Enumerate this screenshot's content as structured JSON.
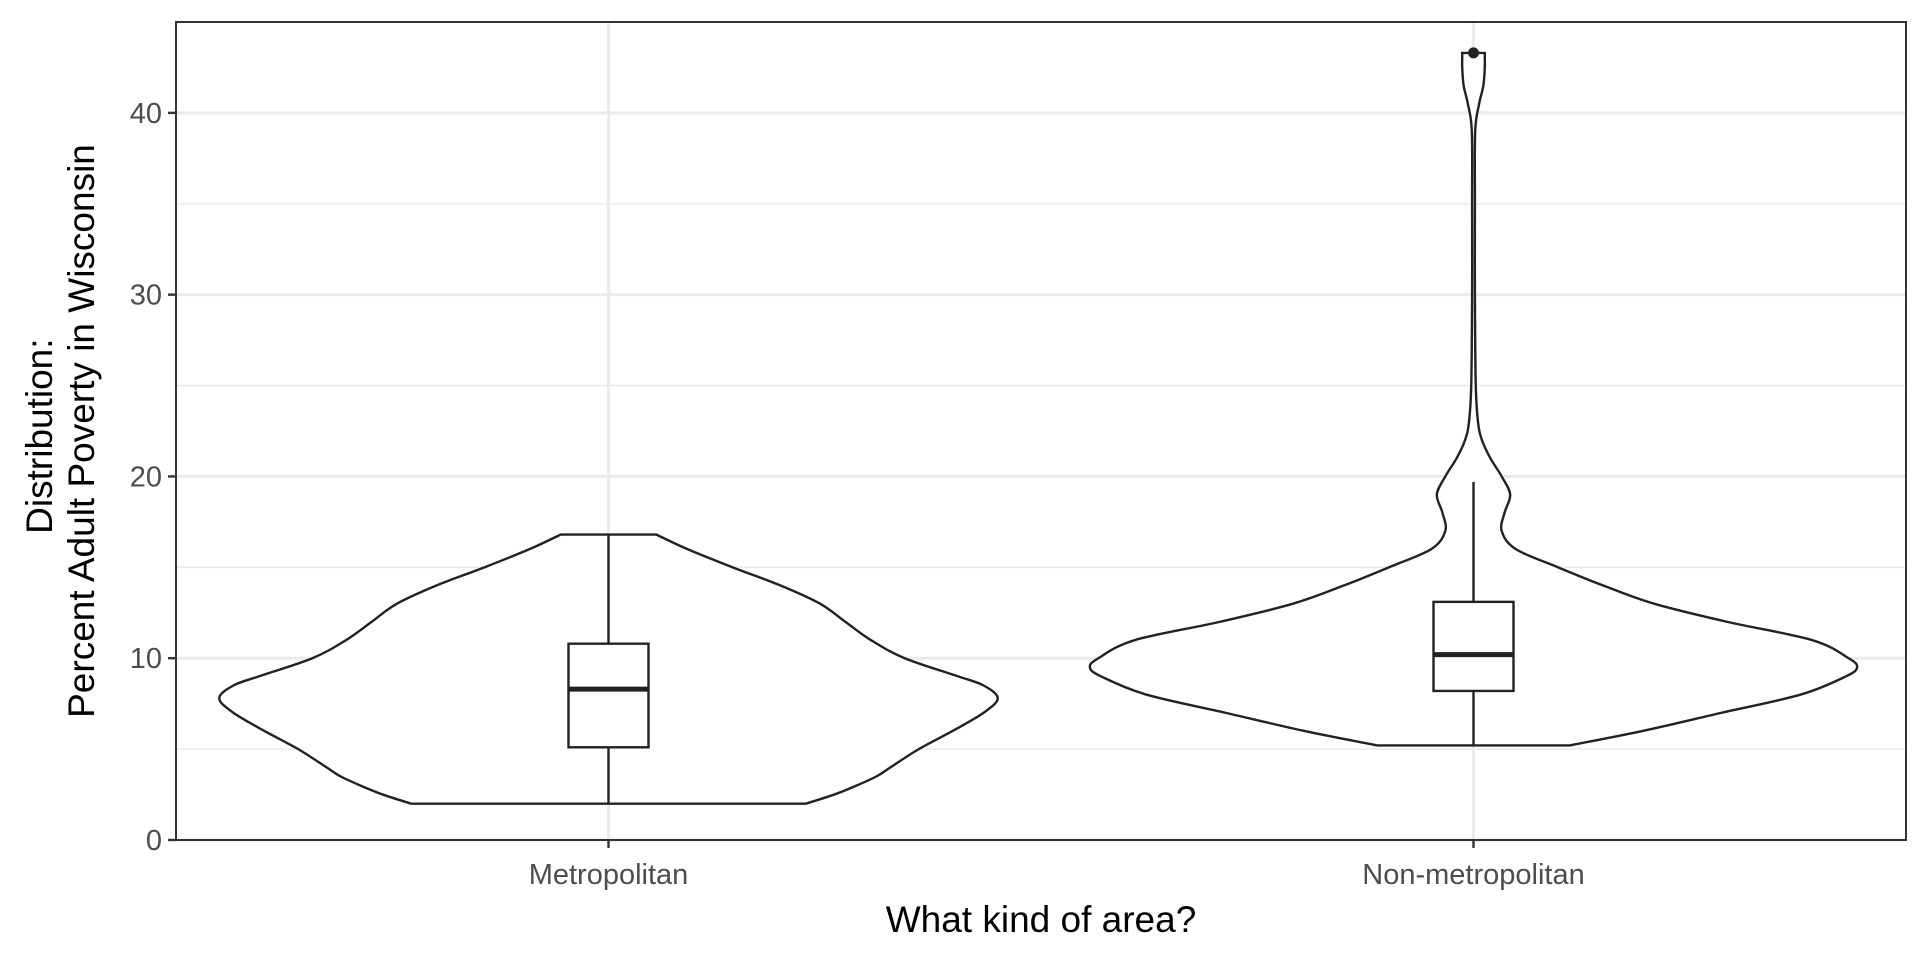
{
  "chart_data": {
    "type": "violin",
    "xlabel": "What kind of area?",
    "ylabel_lines": [
      "Distribution:",
      "Percent Adult Poverty in Wisconsin"
    ],
    "ylim": [
      0,
      45
    ],
    "yticks": [
      0,
      10,
      20,
      30,
      40
    ],
    "yticks_minor": [
      5,
      15,
      25,
      35
    ],
    "grid": true,
    "categories": [
      "Metropolitan",
      "Non-metropolitan"
    ],
    "violins": [
      {
        "category": "Metropolitan",
        "min": 2.0,
        "max": 16.8,
        "density": [
          [
            2.0,
            0.7
          ],
          [
            2.5,
            0.8
          ],
          [
            3.0,
            0.88
          ],
          [
            3.5,
            0.95
          ],
          [
            4.0,
            1.0
          ],
          [
            5.0,
            1.1
          ],
          [
            6.0,
            1.22
          ],
          [
            7.0,
            1.33
          ],
          [
            7.8,
            1.38
          ],
          [
            8.5,
            1.33
          ],
          [
            9.0,
            1.24
          ],
          [
            10.0,
            1.05
          ],
          [
            11.0,
            0.93
          ],
          [
            12.0,
            0.84
          ],
          [
            13.0,
            0.75
          ],
          [
            14.0,
            0.61
          ],
          [
            15.0,
            0.44
          ],
          [
            16.0,
            0.28
          ],
          [
            16.8,
            0.17
          ]
        ],
        "box": {
          "q1": 5.1,
          "median": 8.3,
          "q3": 10.8,
          "whisker_low": 2.0,
          "whisker_high": 16.8
        },
        "outliers": []
      },
      {
        "category": "Non-metropolitan",
        "min": 5.2,
        "max": 43.3,
        "density": [
          [
            5.2,
            0.34
          ],
          [
            6.0,
            0.6
          ],
          [
            7.0,
            0.88
          ],
          [
            8.0,
            1.16
          ],
          [
            9.0,
            1.32
          ],
          [
            9.5,
            1.36
          ],
          [
            10.0,
            1.33
          ],
          [
            11.0,
            1.2
          ],
          [
            12.0,
            0.9
          ],
          [
            13.0,
            0.64
          ],
          [
            14.0,
            0.46
          ],
          [
            15.0,
            0.3
          ],
          [
            16.0,
            0.15
          ],
          [
            17.0,
            0.1
          ],
          [
            18.0,
            0.11
          ],
          [
            19.0,
            0.13
          ],
          [
            20.0,
            0.1
          ],
          [
            21.0,
            0.06
          ],
          [
            22.0,
            0.03
          ],
          [
            23.0,
            0.016
          ],
          [
            25.0,
            0.008
          ],
          [
            30.0,
            0.005
          ],
          [
            35.0,
            0.005
          ],
          [
            39.0,
            0.006
          ],
          [
            40.5,
            0.02
          ],
          [
            41.5,
            0.035
          ],
          [
            42.5,
            0.04
          ],
          [
            43.0,
            0.04
          ],
          [
            43.3,
            0.04
          ]
        ],
        "box": {
          "q1": 8.2,
          "median": 10.2,
          "q3": 13.1,
          "whisker_low": 5.2,
          "whisker_high": 19.7
        },
        "outliers": [
          43.3
        ]
      }
    ]
  }
}
